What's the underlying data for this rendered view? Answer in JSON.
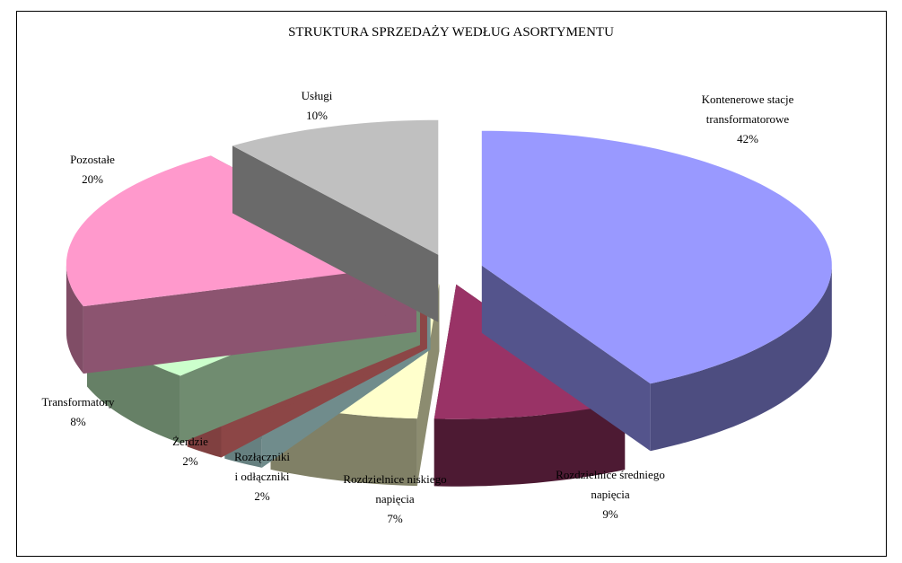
{
  "chart_data": {
    "type": "pie3d",
    "title": "STRUKTURA SPRZEDAŻY WEDŁUG ASORTYMENTU",
    "categories": [
      "Kontenerowe stacje\ntransformatorowe",
      "Rozdzielnice średniego\nnapięcia",
      "Rozdzielnice niskiego\nnapięcia",
      "Rozłączniki\ni odłączniki",
      "Żerdzie",
      "Transformatory",
      "Pozostałe",
      "Usługi"
    ],
    "values": [
      42,
      9,
      7,
      2,
      2,
      8,
      20,
      10
    ],
    "value_labels": [
      "42%",
      "9%",
      "7%",
      "2%",
      "2%",
      "8%",
      "20%",
      "10%"
    ],
    "colors": [
      "#9999ff",
      "#993366",
      "#ffffcc",
      "#ccffff",
      "#ff8080",
      "#ccffcc",
      "#ff99cc",
      "#c0c0c0"
    ]
  }
}
